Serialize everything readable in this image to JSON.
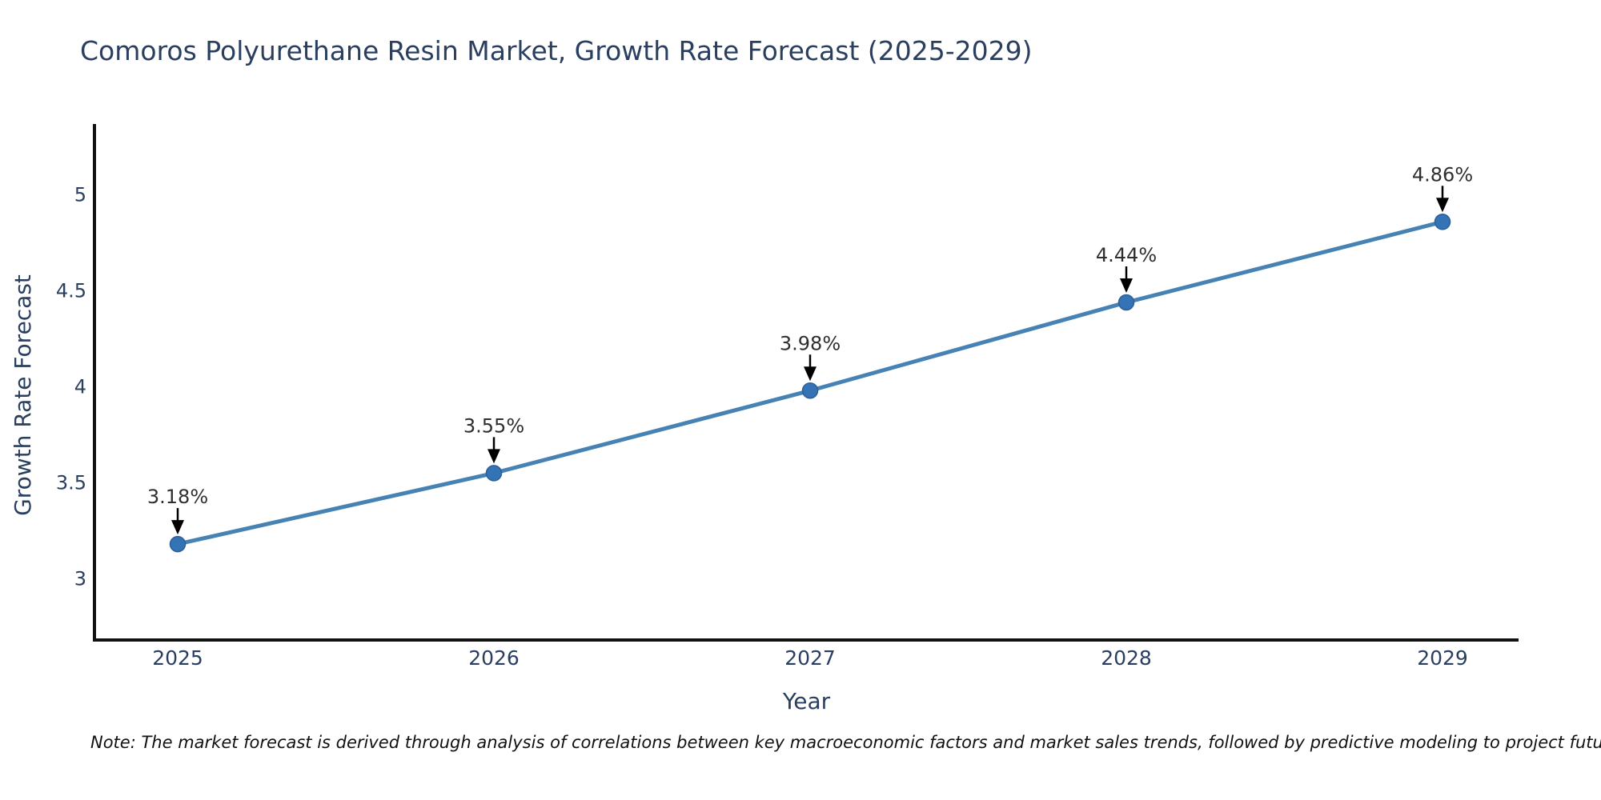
{
  "title": "Comoros Polyurethane Resin Market, Growth Rate Forecast (2025-2029)",
  "note": "Note: The market forecast is derived through analysis of correlations between key macroeconomic factors and market sales trends, followed by predictive modeling to project future sales.",
  "chart_data": {
    "type": "line",
    "title": "Comoros Polyurethane Resin Market, Growth Rate Forecast (2025-2029)",
    "x": [
      "2025",
      "2026",
      "2027",
      "2028",
      "2029"
    ],
    "series": [
      {
        "name": "Growth Rate Forecast",
        "values": [
          3.18,
          3.55,
          3.98,
          4.44,
          4.86
        ]
      }
    ],
    "point_labels": [
      "3.18%",
      "3.55%",
      "3.98%",
      "4.44%",
      "4.86%"
    ],
    "xlabel": "Year",
    "ylabel": "Growth Rate Forecast",
    "ylim": [
      2.68,
      5.37
    ],
    "yticks": [
      3,
      3.5,
      4,
      4.5,
      5
    ],
    "ytick_labels": [
      "3",
      "3.5",
      "4",
      "4.5",
      "5"
    ],
    "grid": false,
    "legend_position": "none",
    "colors": {
      "line": "#4682b4",
      "marker": "#3473b5",
      "marker_edge": "#2d5f97",
      "axis": "#111111",
      "axis_text": "#2a3f5f",
      "annotation_text": "#2f2f2f",
      "arrow": "#000000"
    }
  }
}
